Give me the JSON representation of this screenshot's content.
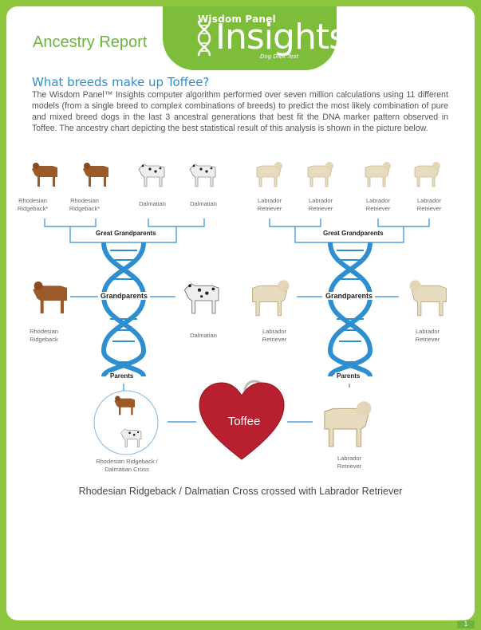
{
  "brand": {
    "top": "Wisdom Panel",
    "main": "Insights",
    "sub": "Dog DNA Test",
    "green": "#7dbd3a",
    "blue": "#2e8fd0"
  },
  "report_title": "Ancestry Report",
  "section_title": "What breeds make up Toffee?",
  "intro": "The Wisdom Panel™ Insights computer algorithm performed over seven million calculations using 11 different models (from a single breed to complex combinations of breeds) to predict the most likely combination of pure and mixed breed dogs in the last 3 ancestral generations that best fit the DNA marker pattern observed in Toffee. The ancestry chart depicting the best statistical result of this analysis is shown in the picture below.",
  "great_grandparents": {
    "label": "Great Grandparents",
    "left": [
      "Rhodesian Ridgeback*",
      "Rhodesian Ridgeback*",
      "Dalmatian",
      "Dalmatian"
    ],
    "right": [
      "Labrador Retriever",
      "Labrador Retriever",
      "Labrador Retriever",
      "Labrador Retriever"
    ]
  },
  "grandparents": {
    "label": "Grandparents",
    "left": [
      "Rhodesian Ridgeback",
      "Dalmatian"
    ],
    "right": [
      "Labrador Retriever",
      "Labrador Retriever"
    ]
  },
  "parents": {
    "label": "Parents",
    "left": "Rhodesian Ridgeback / Dalmatian Cross",
    "right": "Labrador Retriever"
  },
  "dog_name": "Toffee",
  "caption": "Rhodesian Ridgeback / Dalmatian Cross crossed with Labrador Retriever",
  "page_number": "1",
  "dog_icons": [
    "rhodesian-ridgeback-icon",
    "dalmatian-icon",
    "labrador-retriever-icon",
    "dna-helix-icon",
    "heart-tag-icon"
  ]
}
